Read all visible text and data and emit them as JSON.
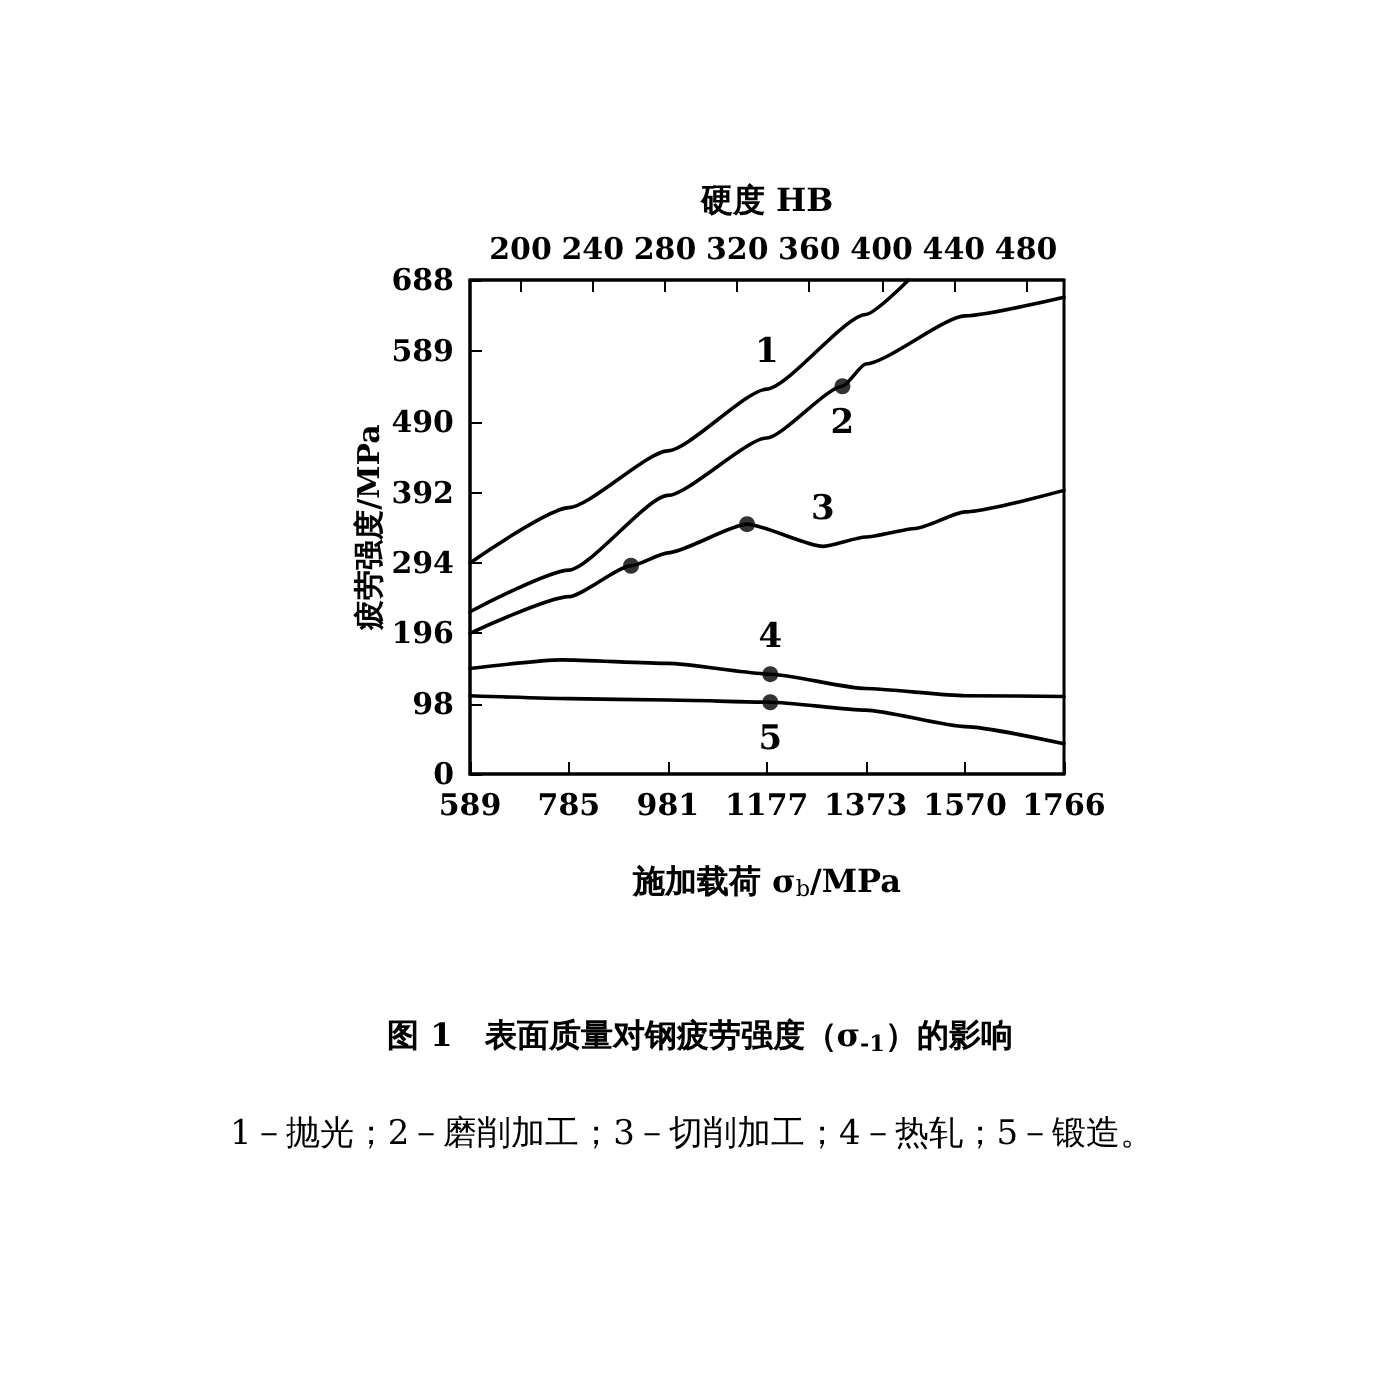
{
  "chart_data": {
    "type": "line",
    "title": "图 1　表面质量对钢疲劳强度（σ$_{-1}$）的影响",
    "annotations": [
      "1－抛光；2－磨削加工；3－切削加工；4－热轧；5－锻造。"
    ],
    "xlabel": "施加载荷 σ$_{b}$/MPa",
    "ylabel": "疲劳强度/MPa",
    "x2label": "硬度 HB",
    "xlim": [
      589,
      1766
    ],
    "xticks": [
      589,
      785,
      981,
      1177,
      1373,
      1570,
      1766
    ],
    "ylim": [
      0,
      688
    ],
    "yticks": [
      0,
      98,
      196,
      294,
      392,
      490,
      589,
      688
    ],
    "x2lim": [
      172,
      501
    ],
    "x2ticks": [
      200,
      240,
      280,
      320,
      360,
      400,
      440,
      480
    ],
    "grid": false,
    "legend": false,
    "marker": "none",
    "line_style": "solid",
    "series": [
      {
        "name": "1",
        "color": "#000000",
        "x": [
          589,
          785,
          981,
          1177,
          1373,
          1458
        ],
        "values": [
          294,
          371,
          450,
          536,
          640,
          688
        ]
      },
      {
        "name": "2",
        "color": "#000000",
        "x": [
          589,
          785,
          981,
          1177,
          1327,
          1373,
          1570,
          1766
        ],
        "values": [
          226,
          284,
          388,
          468,
          540,
          571,
          638,
          664
        ]
      },
      {
        "name": "3",
        "color": "#000000",
        "x": [
          589,
          785,
          908,
          981,
          1138,
          1288,
          1373,
          1472,
          1570,
          1766
        ],
        "values": [
          196,
          247,
          290,
          308,
          348,
          317,
          330,
          342,
          365,
          395
        ]
      },
      {
        "name": "4",
        "color": "#000000",
        "x": [
          589,
          771,
          981,
          1184,
          1373,
          1570,
          1766
        ],
        "values": [
          147,
          159,
          154,
          139,
          119,
          109,
          108
        ]
      },
      {
        "name": "5",
        "color": "#000000",
        "x": [
          589,
          785,
          981,
          1184,
          1373,
          1570,
          1766
        ],
        "values": [
          109,
          105,
          103,
          100,
          89,
          66,
          42
        ]
      },
      {
        "type": "scatter",
        "marker": "circle",
        "color": "#000000",
        "x": [
          908,
          1138,
          1327,
          1184,
          1184
        ],
        "values": [
          290,
          348,
          540,
          139,
          100
        ]
      }
    ]
  }
}
